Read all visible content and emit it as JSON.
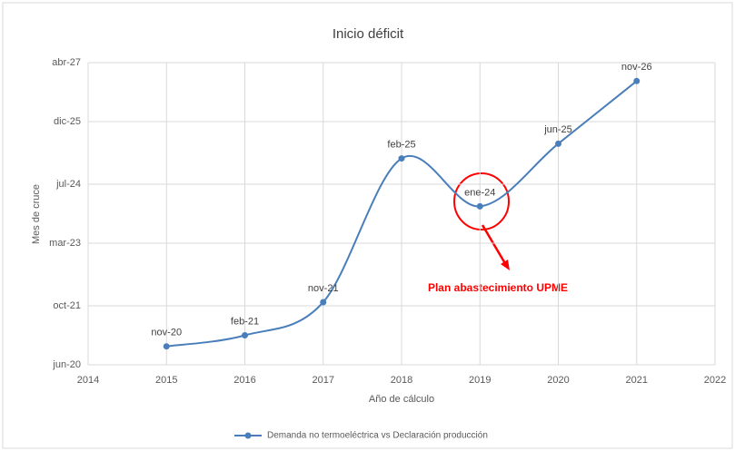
{
  "chart_data": {
    "type": "line",
    "title": "Inicio déficit",
    "x_label": "Año de cálculo",
    "y_label": "Mes de cruce",
    "x": [
      2015,
      2016,
      2017,
      2018,
      2019,
      2020,
      2021
    ],
    "series": [
      {
        "name": "Demanda no termoeléctrica vs Declaración producción",
        "color": "#4a7ebb",
        "values": [
          24250,
          24253,
          24262,
          24301,
          24288,
          24305,
          24322
        ],
        "value_labels": [
          "nov-20",
          "feb-21",
          "nov-21",
          "feb-25",
          "ene-24",
          "jun-25",
          "nov-26"
        ]
      }
    ],
    "xlim": [
      2014,
      2022
    ],
    "xticks": [
      2014,
      2015,
      2016,
      2017,
      2018,
      2019,
      2020,
      2021,
      2022
    ],
    "ylim": [
      24245,
      24327
    ],
    "yticks": [
      {
        "value": 24245,
        "label": "jun-20"
      },
      {
        "value": 24261,
        "label": "oct-21"
      },
      {
        "value": 24278,
        "label": "mar-23"
      },
      {
        "value": 24294,
        "label": "jul-24"
      },
      {
        "value": 24311,
        "label": "dic-25"
      },
      {
        "value": 24327,
        "label": "abr-27"
      }
    ],
    "grid": true,
    "smooth": true,
    "legend": "bottom",
    "annotations": [
      "Plan abastecimiento UPME"
    ]
  }
}
